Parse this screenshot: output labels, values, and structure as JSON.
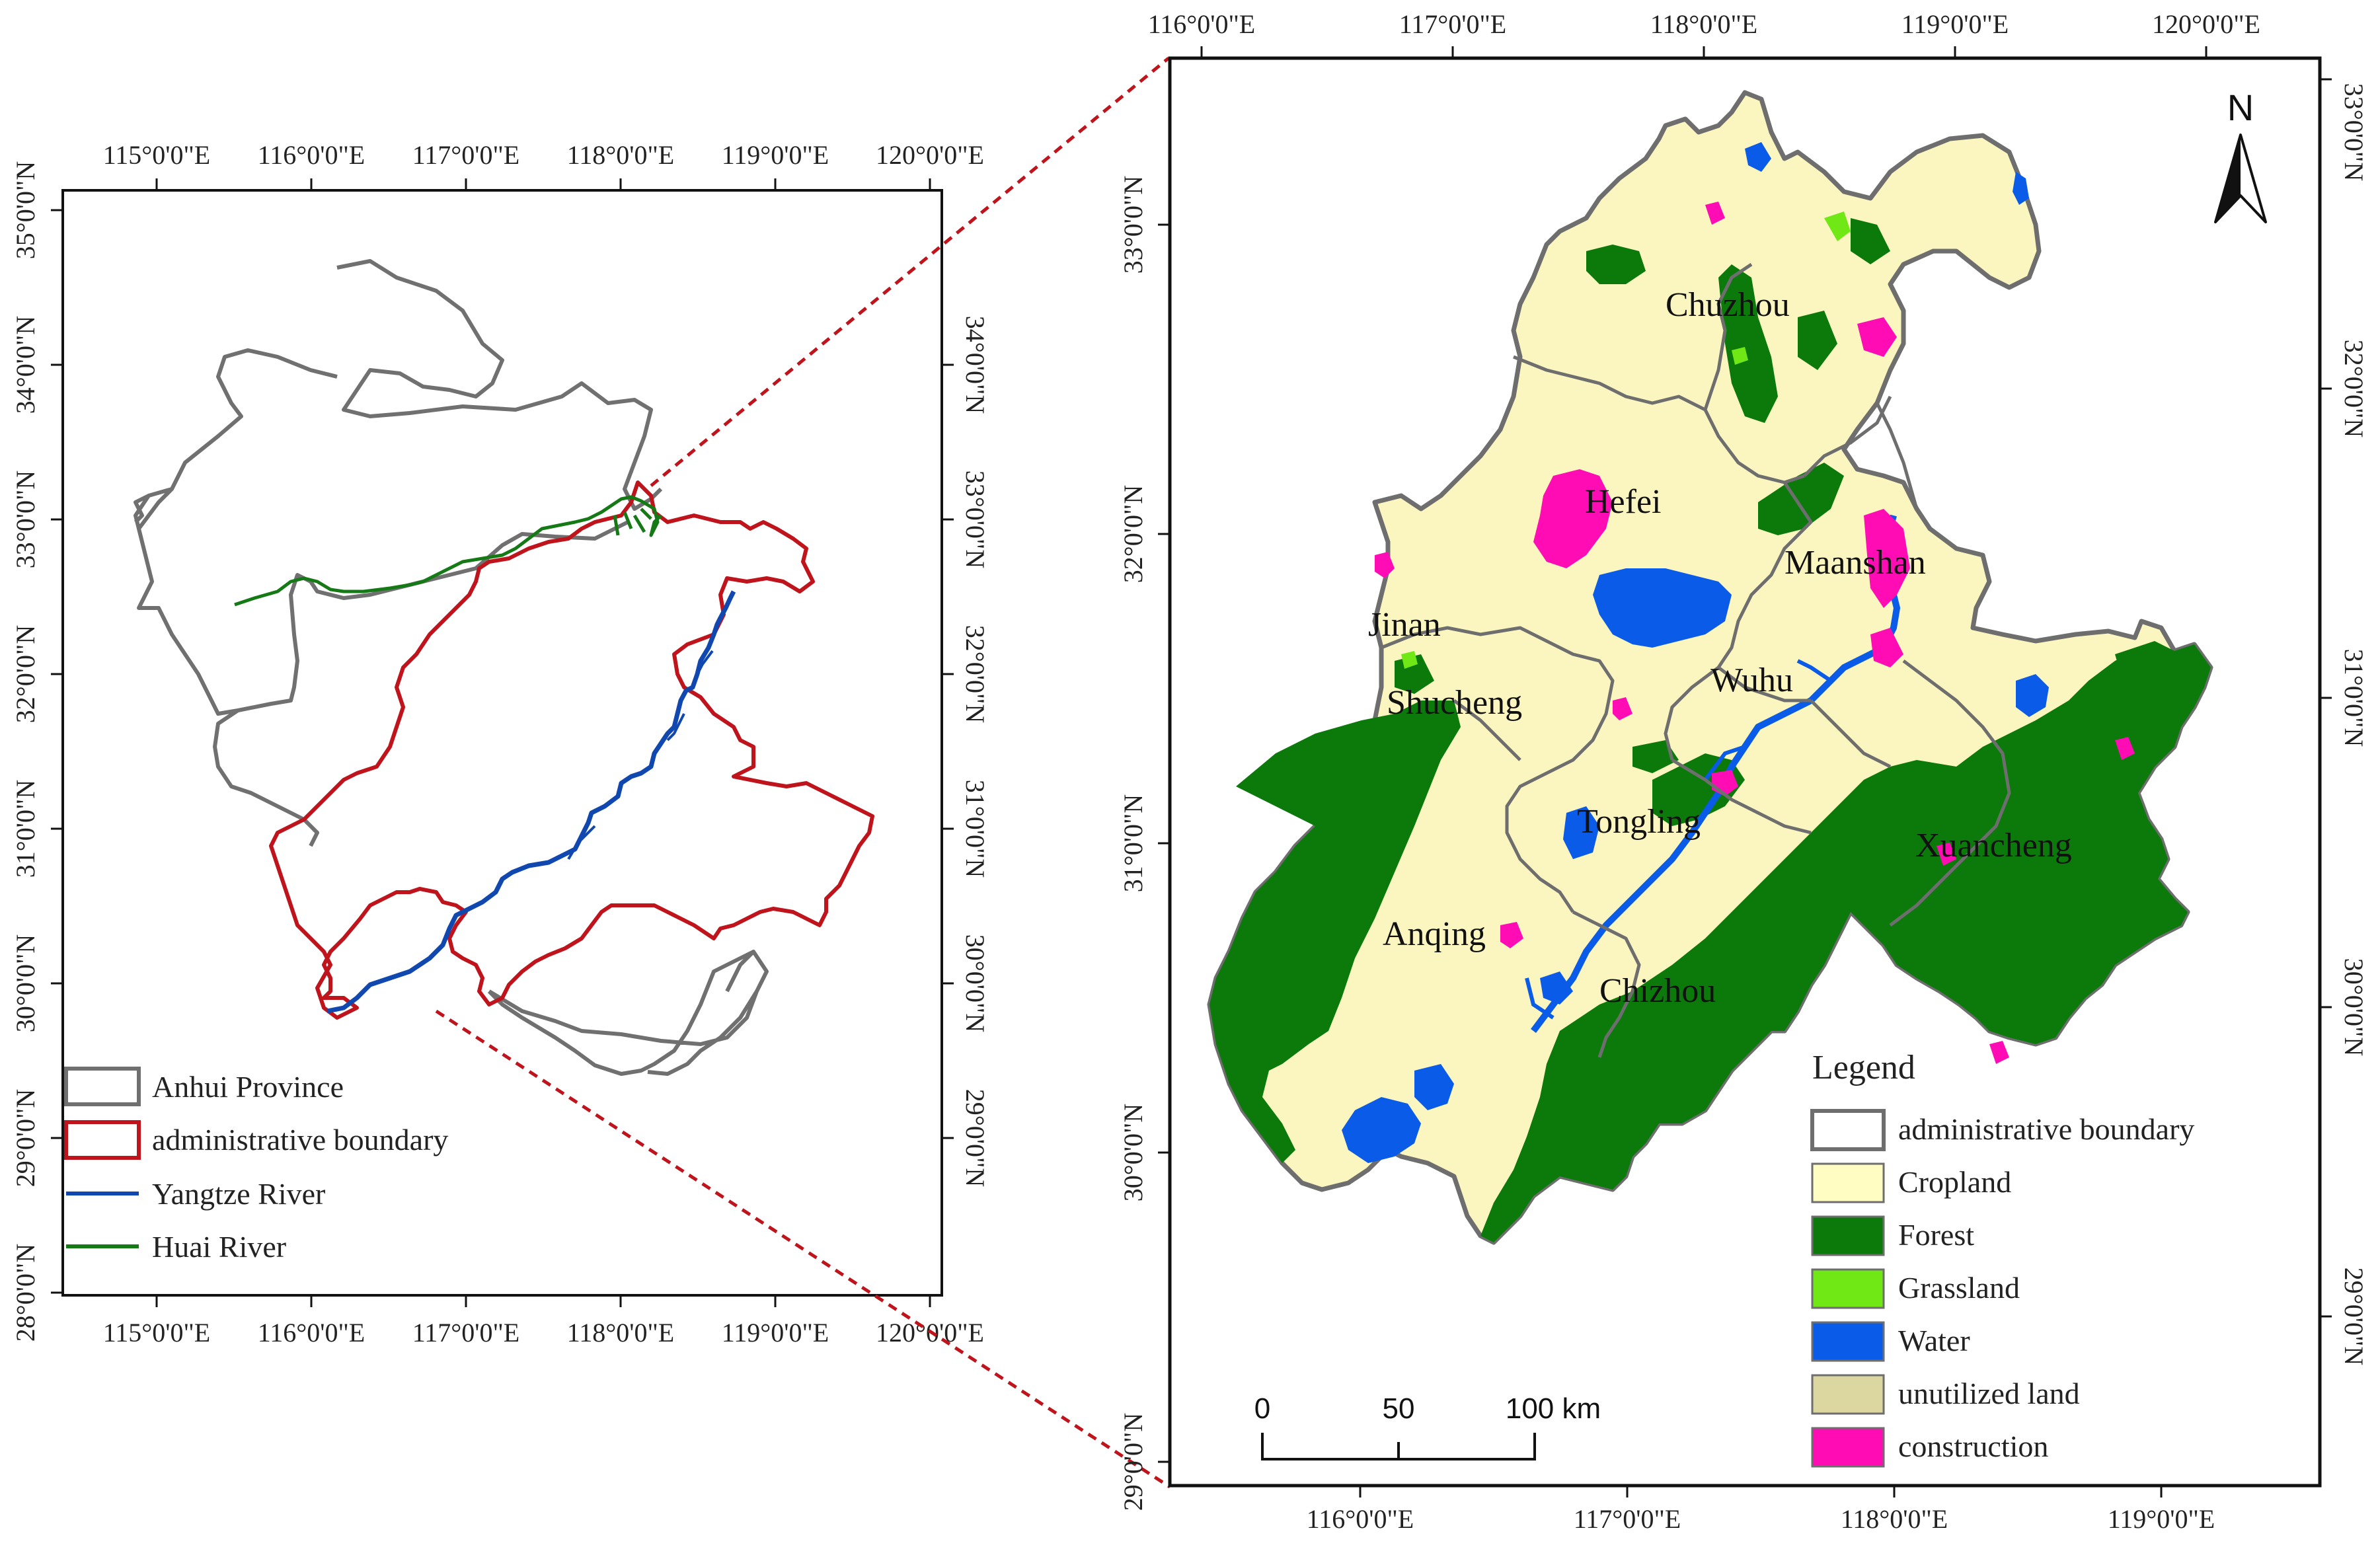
{
  "left_map": {
    "top_ticks": [
      "115°0'0\"E",
      "116°0'0\"E",
      "117°0'0\"E",
      "118°0'0\"E",
      "119°0'0\"E",
      "120°0'0\"E"
    ],
    "bottom_ticks": [
      "115°0'0\"E",
      "116°0'0\"E",
      "117°0'0\"E",
      "118°0'0\"E",
      "119°0'0\"E",
      "120°0'0\"E"
    ],
    "left_ticks": [
      "35°0'0\"N",
      "34°0'0\"N",
      "33°0'0\"N",
      "32°0'0\"N",
      "31°0'0\"N",
      "30°0'0\"N",
      "29°0'0\"N",
      "28°0'0\"N"
    ],
    "right_ticks": [
      "34°0'0\"N",
      "33°0'0\"N",
      "32°0'0\"N",
      "31°0'0\"N",
      "30°0'0\"N",
      "29°0'0\"N"
    ],
    "legend": [
      {
        "label": "Anhui Province",
        "color": "#707070",
        "kind": "box"
      },
      {
        "label": "administrative boundary",
        "color": "#c0141c",
        "kind": "box"
      },
      {
        "label": "Yangtze River",
        "color": "#1048b0",
        "kind": "line"
      },
      {
        "label": "Huai River",
        "color": "#157a15",
        "kind": "line"
      }
    ]
  },
  "right_map": {
    "top_ticks": [
      "116°0'0\"E",
      "117°0'0\"E",
      "118°0'0\"E",
      "119°0'0\"E",
      "120°0'0\"E"
    ],
    "bottom_ticks": [
      "116°0'0\"E",
      "117°0'0\"E",
      "118°0'0\"E",
      "119°0'0\"E"
    ],
    "left_ticks": [
      "33°0'0\"N",
      "32°0'0\"N",
      "31°0'0\"N",
      "30°0'0\"N",
      "29°0'0\"N"
    ],
    "right_ticks": [
      "33°0'0\"N",
      "32°0'0\"N",
      "31°0'0\"N",
      "30°0'0\"N",
      "29°0'0\"N"
    ],
    "north_label": "N",
    "cities": [
      "Chuzhou",
      "Hefei",
      "Maanshan",
      "Jinan",
      "Wuhu",
      "Shucheng",
      "Tongling",
      "Xuancheng",
      "Anqing",
      "Chizhou"
    ],
    "legend_title": "Legend",
    "legend": [
      {
        "label": "administrative boundary",
        "color": "#ffffff",
        "border": "#6e6e6e"
      },
      {
        "label": "Cropland",
        "color": "#fffdc2",
        "border": "#6e6e6e"
      },
      {
        "label": "Forest",
        "color": "#0b7a0b",
        "border": "#6e6e6e"
      },
      {
        "label": "Grassland",
        "color": "#6fe816",
        "border": "#6e6e6e"
      },
      {
        "label": "Water",
        "color": "#0a5ce8",
        "border": "#6e6e6e"
      },
      {
        "label": "unutilized land",
        "color": "#dcd7a0",
        "border": "#6e6e6e"
      },
      {
        "label": "construction",
        "color": "#ff0cb4",
        "border": "#6e6e6e"
      }
    ],
    "scale_labels": [
      "0",
      "50",
      "100 km"
    ]
  }
}
